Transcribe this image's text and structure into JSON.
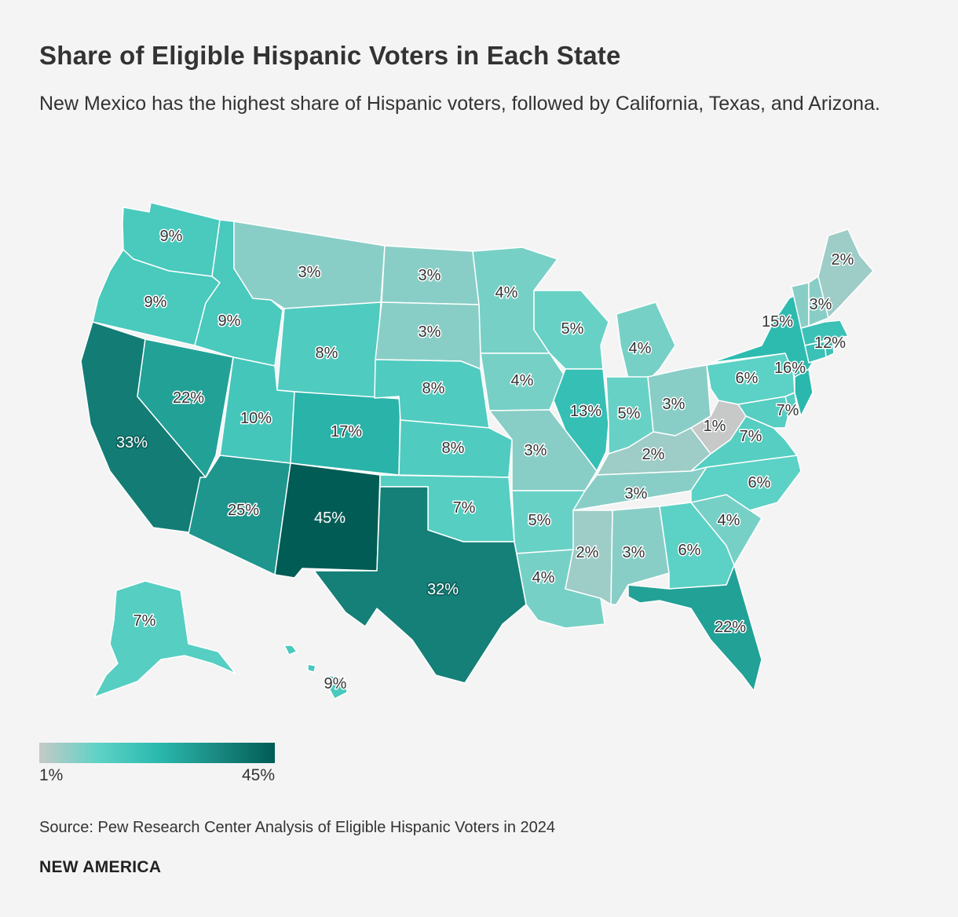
{
  "header": {
    "title": "Share of Eligible Hispanic Voters in Each State",
    "subtitle": "New Mexico has the highest share of Hispanic voters, followed by California, Texas, and Arizona."
  },
  "legend": {
    "min_label": "1%",
    "max_label": "45%",
    "min": 1,
    "max": 45,
    "colors": [
      "#c6c9c7",
      "#5ed2c6",
      "#2bbaaf",
      "#1a8a82",
      "#005c55"
    ]
  },
  "footer": {
    "source": "Source: Pew Research Center Analysis of Eligible Hispanic Voters in 2024",
    "brand": "NEW AMERICA"
  },
  "chart_data": {
    "type": "choropleth",
    "unit": "%",
    "states": [
      {
        "id": "WA",
        "value": 9,
        "label": "9%"
      },
      {
        "id": "OR",
        "value": 9,
        "label": "9%"
      },
      {
        "id": "CA",
        "value": 33,
        "label": "33%"
      },
      {
        "id": "NV",
        "value": 22,
        "label": "22%"
      },
      {
        "id": "ID",
        "value": 9,
        "label": "9%"
      },
      {
        "id": "MT",
        "value": 3,
        "label": "3%"
      },
      {
        "id": "WY",
        "value": 8,
        "label": "8%"
      },
      {
        "id": "UT",
        "value": 10,
        "label": "10%"
      },
      {
        "id": "AZ",
        "value": 25,
        "label": "25%"
      },
      {
        "id": "CO",
        "value": 17,
        "label": "17%"
      },
      {
        "id": "NM",
        "value": 45,
        "label": "45%"
      },
      {
        "id": "ND",
        "value": 3,
        "label": "3%"
      },
      {
        "id": "SD",
        "value": 3,
        "label": "3%"
      },
      {
        "id": "NE",
        "value": 8,
        "label": "8%"
      },
      {
        "id": "KS",
        "value": 8,
        "label": "8%"
      },
      {
        "id": "OK",
        "value": 7,
        "label": "7%"
      },
      {
        "id": "TX",
        "value": 32,
        "label": "32%"
      },
      {
        "id": "MN",
        "value": 4,
        "label": "4%"
      },
      {
        "id": "IA",
        "value": 4,
        "label": "4%"
      },
      {
        "id": "MO",
        "value": 3,
        "label": "3%"
      },
      {
        "id": "AR",
        "value": 5,
        "label": "5%"
      },
      {
        "id": "LA",
        "value": 4,
        "label": "4%"
      },
      {
        "id": "WI",
        "value": 5,
        "label": "5%"
      },
      {
        "id": "IL",
        "value": 13,
        "label": "13%"
      },
      {
        "id": "MI",
        "value": 4,
        "label": "4%"
      },
      {
        "id": "IN",
        "value": 5,
        "label": "5%"
      },
      {
        "id": "OH",
        "value": 3,
        "label": "3%"
      },
      {
        "id": "KY",
        "value": 2,
        "label": "2%"
      },
      {
        "id": "TN",
        "value": 3,
        "label": "3%"
      },
      {
        "id": "MS",
        "value": 2,
        "label": "2%"
      },
      {
        "id": "AL",
        "value": 3,
        "label": "3%"
      },
      {
        "id": "GA",
        "value": 6,
        "label": "6%"
      },
      {
        "id": "FL",
        "value": 22,
        "label": "22%"
      },
      {
        "id": "SC",
        "value": 4,
        "label": "4%"
      },
      {
        "id": "NC",
        "value": 6,
        "label": "6%"
      },
      {
        "id": "VA",
        "value": 7,
        "label": "7%"
      },
      {
        "id": "WV",
        "value": 1,
        "label": "1%"
      },
      {
        "id": "MD",
        "value": 7,
        "label": "7%"
      },
      {
        "id": "DE",
        "value": 7
      },
      {
        "id": "PA",
        "value": 6,
        "label": "6%"
      },
      {
        "id": "NJ",
        "value": 16,
        "label": "16%"
      },
      {
        "id": "NY",
        "value": 15,
        "label": "15%"
      },
      {
        "id": "CT",
        "value": 12
      },
      {
        "id": "RI",
        "value": 12
      },
      {
        "id": "MA",
        "value": 12,
        "label": "12%"
      },
      {
        "id": "VT",
        "value": 3
      },
      {
        "id": "NH",
        "value": 3,
        "label": "3%"
      },
      {
        "id": "ME",
        "value": 2,
        "label": "2%"
      },
      {
        "id": "AK",
        "value": 7,
        "label": "7%"
      },
      {
        "id": "HI",
        "value": 9,
        "label": "9%"
      }
    ]
  }
}
